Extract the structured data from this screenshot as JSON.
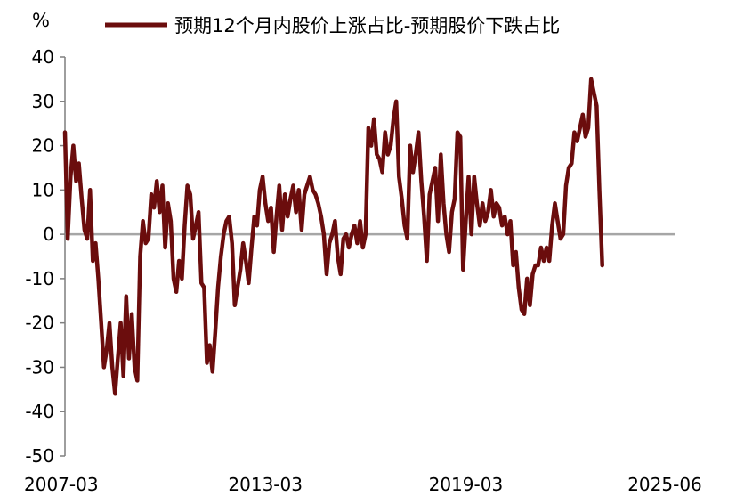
{
  "chart_data": {
    "type": "line",
    "ylabel": "%",
    "ylim": [
      -50,
      40
    ],
    "yticks": [
      40,
      30,
      20,
      10,
      0,
      -10,
      -20,
      -30,
      -40,
      -50
    ],
    "xlim": [
      "2007-03",
      "2025-06"
    ],
    "xtick_labels": [
      "2007-03",
      "2013-03",
      "2019-03",
      "2025-06"
    ],
    "zero_line": true,
    "grid": false,
    "legend_position": "top",
    "colors": {
      "series": "#6b0d0d",
      "axis": "#7f7f7f",
      "zero_line": "#a6a6a6"
    },
    "series": [
      {
        "name": "预期12个月内股价上涨占比-预期股价下跌占比",
        "points": [
          [
            "2007-03",
            23
          ],
          [
            "2007-04",
            -1
          ],
          [
            "2007-05",
            13
          ],
          [
            "2007-06",
            20
          ],
          [
            "2007-07",
            12
          ],
          [
            "2007-08",
            16
          ],
          [
            "2007-09",
            8
          ],
          [
            "2007-10",
            1
          ],
          [
            "2007-11",
            -1
          ],
          [
            "2007-12",
            10
          ],
          [
            "2008-01",
            -6
          ],
          [
            "2008-02",
            -2
          ],
          [
            "2008-03",
            -10
          ],
          [
            "2008-04",
            -20
          ],
          [
            "2008-05",
            -30
          ],
          [
            "2008-06",
            -26
          ],
          [
            "2008-07",
            -20
          ],
          [
            "2008-08",
            -30
          ],
          [
            "2008-09",
            -36
          ],
          [
            "2008-10",
            -28
          ],
          [
            "2008-11",
            -20
          ],
          [
            "2008-12",
            -32
          ],
          [
            "2009-01",
            -14
          ],
          [
            "2009-02",
            -28
          ],
          [
            "2009-03",
            -18
          ],
          [
            "2009-04",
            -30
          ],
          [
            "2009-05",
            -33
          ],
          [
            "2009-06",
            -5
          ],
          [
            "2009-07",
            3
          ],
          [
            "2009-08",
            -2
          ],
          [
            "2009-09",
            -1
          ],
          [
            "2009-10",
            9
          ],
          [
            "2009-11",
            6
          ],
          [
            "2009-12",
            12
          ],
          [
            "2010-01",
            5
          ],
          [
            "2010-02",
            11
          ],
          [
            "2010-03",
            -3
          ],
          [
            "2010-04",
            7
          ],
          [
            "2010-05",
            3
          ],
          [
            "2010-06",
            -10
          ],
          [
            "2010-07",
            -13
          ],
          [
            "2010-08",
            -6
          ],
          [
            "2010-09",
            -10
          ],
          [
            "2010-10",
            2
          ],
          [
            "2010-11",
            11
          ],
          [
            "2010-12",
            9
          ],
          [
            "2011-01",
            -1
          ],
          [
            "2011-02",
            2
          ],
          [
            "2011-03",
            5
          ],
          [
            "2011-04",
            -11
          ],
          [
            "2011-05",
            -12
          ],
          [
            "2011-06",
            -29
          ],
          [
            "2011-07",
            -25
          ],
          [
            "2011-08",
            -31
          ],
          [
            "2011-09",
            -22
          ],
          [
            "2011-10",
            -12
          ],
          [
            "2011-11",
            -5
          ],
          [
            "2011-12",
            0
          ],
          [
            "2012-01",
            3
          ],
          [
            "2012-02",
            4
          ],
          [
            "2012-03",
            -2
          ],
          [
            "2012-04",
            -16
          ],
          [
            "2012-05",
            -12
          ],
          [
            "2012-06",
            -8
          ],
          [
            "2012-07",
            -2
          ],
          [
            "2012-08",
            -6
          ],
          [
            "2012-09",
            -11
          ],
          [
            "2012-10",
            -3
          ],
          [
            "2012-11",
            4
          ],
          [
            "2012-12",
            2
          ],
          [
            "2013-01",
            10
          ],
          [
            "2013-02",
            13
          ],
          [
            "2013-03",
            7
          ],
          [
            "2013-04",
            3
          ],
          [
            "2013-05",
            6
          ],
          [
            "2013-06",
            -4
          ],
          [
            "2013-07",
            4
          ],
          [
            "2013-08",
            11
          ],
          [
            "2013-09",
            1
          ],
          [
            "2013-10",
            9
          ],
          [
            "2013-11",
            4
          ],
          [
            "2013-12",
            8
          ],
          [
            "2014-01",
            11
          ],
          [
            "2014-02",
            5
          ],
          [
            "2014-03",
            10
          ],
          [
            "2014-04",
            1
          ],
          [
            "2014-05",
            9
          ],
          [
            "2014-06",
            11
          ],
          [
            "2014-07",
            13
          ],
          [
            "2014-08",
            10
          ],
          [
            "2014-09",
            9
          ],
          [
            "2014-10",
            7
          ],
          [
            "2014-11",
            4
          ],
          [
            "2014-12",
            0
          ],
          [
            "2015-01",
            -9
          ],
          [
            "2015-02",
            -2
          ],
          [
            "2015-03",
            0
          ],
          [
            "2015-04",
            3
          ],
          [
            "2015-05",
            -5
          ],
          [
            "2015-06",
            -9
          ],
          [
            "2015-07",
            -1
          ],
          [
            "2015-08",
            0
          ],
          [
            "2015-09",
            -3
          ],
          [
            "2015-10",
            0
          ],
          [
            "2015-11",
            2
          ],
          [
            "2015-12",
            -2
          ],
          [
            "2016-01",
            3
          ],
          [
            "2016-02",
            -3
          ],
          [
            "2016-03",
            0
          ],
          [
            "2016-04",
            24
          ],
          [
            "2016-05",
            20
          ],
          [
            "2016-06",
            26
          ],
          [
            "2016-07",
            18
          ],
          [
            "2016-08",
            17
          ],
          [
            "2016-09",
            14
          ],
          [
            "2016-10",
            23
          ],
          [
            "2016-11",
            18
          ],
          [
            "2016-12",
            20
          ],
          [
            "2017-01",
            26
          ],
          [
            "2017-02",
            30
          ],
          [
            "2017-03",
            13
          ],
          [
            "2017-04",
            8
          ],
          [
            "2017-05",
            2
          ],
          [
            "2017-06",
            -1
          ],
          [
            "2017-07",
            20
          ],
          [
            "2017-08",
            14
          ],
          [
            "2017-09",
            18
          ],
          [
            "2017-10",
            23
          ],
          [
            "2017-11",
            12
          ],
          [
            "2017-12",
            4
          ],
          [
            "2018-01",
            -6
          ],
          [
            "2018-02",
            9
          ],
          [
            "2018-03",
            12
          ],
          [
            "2018-04",
            15
          ],
          [
            "2018-05",
            3
          ],
          [
            "2018-06",
            18
          ],
          [
            "2018-07",
            7
          ],
          [
            "2018-08",
            0
          ],
          [
            "2018-09",
            -4
          ],
          [
            "2018-10",
            5
          ],
          [
            "2018-11",
            8
          ],
          [
            "2018-12",
            23
          ],
          [
            "2019-01",
            22
          ],
          [
            "2019-02",
            -8
          ],
          [
            "2019-03",
            3
          ],
          [
            "2019-04",
            13
          ],
          [
            "2019-05",
            0
          ],
          [
            "2019-06",
            13
          ],
          [
            "2019-07",
            7
          ],
          [
            "2019-08",
            2
          ],
          [
            "2019-09",
            7
          ],
          [
            "2019-10",
            3
          ],
          [
            "2019-11",
            5
          ],
          [
            "2019-12",
            10
          ],
          [
            "2020-01",
            4
          ],
          [
            "2020-02",
            7
          ],
          [
            "2020-03",
            6
          ],
          [
            "2020-04",
            2
          ],
          [
            "2020-05",
            4
          ],
          [
            "2020-06",
            0
          ],
          [
            "2020-07",
            3
          ],
          [
            "2020-08",
            -7
          ],
          [
            "2020-09",
            -4
          ],
          [
            "2020-10",
            -12
          ],
          [
            "2020-11",
            -17
          ],
          [
            "2020-12",
            -18
          ],
          [
            "2021-01",
            -10
          ],
          [
            "2021-02",
            -16
          ],
          [
            "2021-03",
            -9
          ],
          [
            "2021-04",
            -7
          ],
          [
            "2021-05",
            -7
          ],
          [
            "2021-06",
            -3
          ],
          [
            "2021-07",
            -6
          ],
          [
            "2021-08",
            -3
          ],
          [
            "2021-09",
            -6
          ],
          [
            "2021-10",
            2
          ],
          [
            "2021-11",
            7
          ],
          [
            "2021-12",
            3
          ],
          [
            "2022-01",
            -1
          ],
          [
            "2022-02",
            0
          ],
          [
            "2022-03",
            11
          ],
          [
            "2022-04",
            15
          ],
          [
            "2022-05",
            16
          ],
          [
            "2022-06",
            23
          ],
          [
            "2022-07",
            21
          ],
          [
            "2022-08",
            24
          ],
          [
            "2022-09",
            27
          ],
          [
            "2022-10",
            22
          ],
          [
            "2022-11",
            24
          ],
          [
            "2022-12",
            35
          ],
          [
            "2023-01",
            32
          ],
          [
            "2023-02",
            29
          ],
          [
            "2023-03",
            10
          ],
          [
            "2023-04",
            -7
          ]
        ]
      }
    ]
  }
}
